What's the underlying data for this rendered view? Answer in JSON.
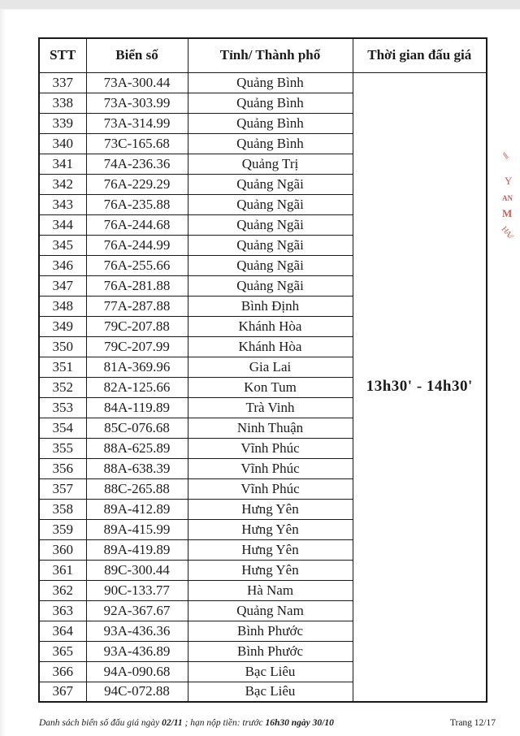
{
  "table": {
    "headers": [
      "STT",
      "Biển số",
      "Tỉnh/ Thành phố",
      "Thời gian đấu giá"
    ],
    "auction_time": "13h30' - 14h30'",
    "rows": [
      [
        "337",
        "73A-300.44",
        "Quảng Bình"
      ],
      [
        "338",
        "73A-303.99",
        "Quảng Bình"
      ],
      [
        "339",
        "73A-314.99",
        "Quảng Bình"
      ],
      [
        "340",
        "73C-165.68",
        "Quảng Bình"
      ],
      [
        "341",
        "74A-236.36",
        "Quảng Trị"
      ],
      [
        "342",
        "76A-229.29",
        "Quảng Ngãi"
      ],
      [
        "343",
        "76A-235.88",
        "Quảng Ngãi"
      ],
      [
        "344",
        "76A-244.68",
        "Quảng Ngãi"
      ],
      [
        "345",
        "76A-244.99",
        "Quảng Ngãi"
      ],
      [
        "346",
        "76A-255.66",
        "Quảng Ngãi"
      ],
      [
        "347",
        "76A-281.88",
        "Quảng Ngãi"
      ],
      [
        "348",
        "77A-287.88",
        "Bình Định"
      ],
      [
        "349",
        "79C-207.88",
        "Khánh Hòa"
      ],
      [
        "350",
        "79C-207.99",
        "Khánh Hòa"
      ],
      [
        "351",
        "81A-369.96",
        "Gia Lai"
      ],
      [
        "352",
        "82A-125.66",
        "Kon Tum"
      ],
      [
        "353",
        "84A-119.89",
        "Trà Vinh"
      ],
      [
        "354",
        "85C-076.68",
        "Ninh Thuận"
      ],
      [
        "355",
        "88A-625.89",
        "Vĩnh Phúc"
      ],
      [
        "356",
        "88A-638.39",
        "Vĩnh Phúc"
      ],
      [
        "357",
        "88C-265.88",
        "Vĩnh Phúc"
      ],
      [
        "358",
        "89A-412.89",
        "Hưng Yên"
      ],
      [
        "359",
        "89A-415.99",
        "Hưng Yên"
      ],
      [
        "360",
        "89A-419.89",
        "Hưng Yên"
      ],
      [
        "361",
        "89C-300.44",
        "Hưng Yên"
      ],
      [
        "362",
        "90C-133.77",
        "Hà Nam"
      ],
      [
        "363",
        "92A-367.67",
        "Quảng Nam"
      ],
      [
        "364",
        "93A-436.36",
        "Bình Phước"
      ],
      [
        "365",
        "93A-436.89",
        "Bình Phước"
      ],
      [
        "366",
        "94A-090.68",
        "Bạc Liêu"
      ],
      [
        "367",
        "94C-072.88",
        "Bạc Liêu"
      ]
    ]
  },
  "footer": {
    "left": [
      {
        "text": "Danh sách biển số đấu giá ngày ",
        "bold": false
      },
      {
        "text": "02/11",
        "bold": true
      },
      {
        "text": " ; hạn nộp tiền: trước ",
        "bold": false
      },
      {
        "text": "16h30 ngày 30/10",
        "bold": true
      }
    ],
    "right": "Trang 12/17"
  },
  "stamp": {
    "color": "#c4615c",
    "top_marks": "///",
    "letters": [
      "Y",
      "AN",
      "M"
    ],
    "bottom_marks": "HA//"
  }
}
